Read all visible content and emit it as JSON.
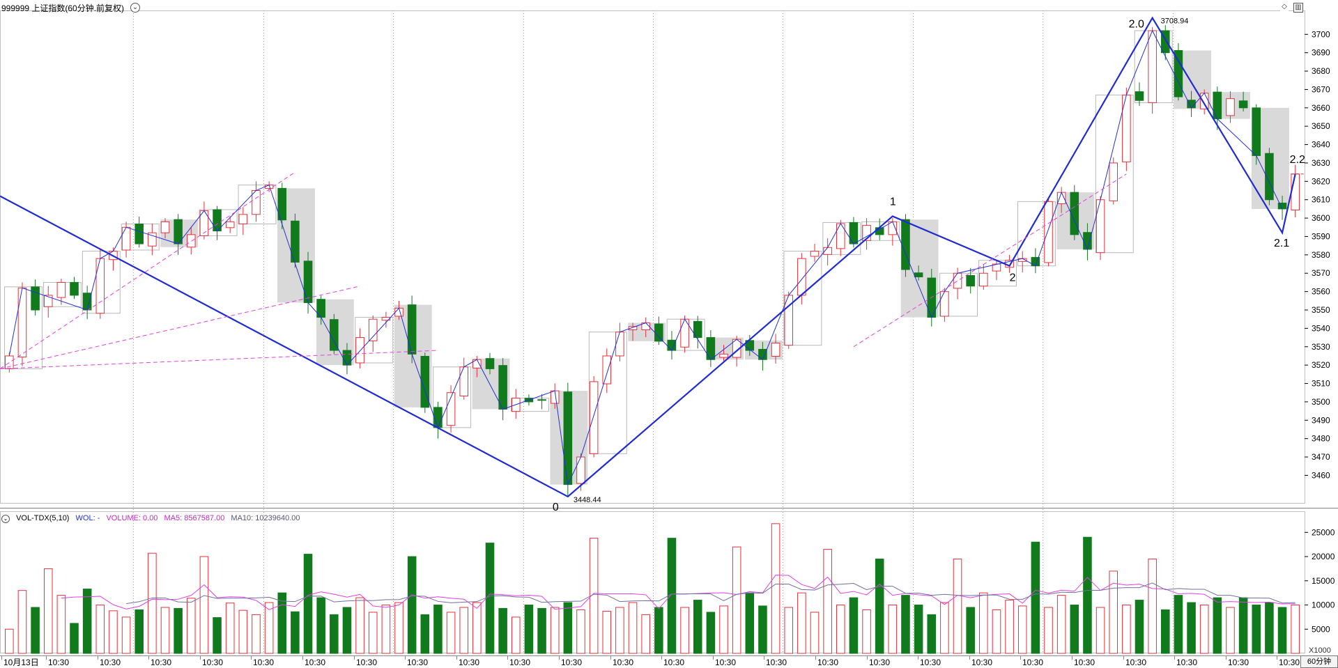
{
  "header": {
    "title": "999999 上证指数(60分钟.前复权)",
    "icons": [
      "chevron-down-icon",
      "diamond-icon",
      "panel-toggle-icon"
    ]
  },
  "colors": {
    "up": "#e8303a",
    "down": "#117a1d",
    "wave": "#1f2bd4",
    "wave_thin": "#2230e0",
    "channel": "#e040e0",
    "box": "#d9d9d9",
    "ma5": "#e040e0",
    "ma10": "#7070a0",
    "grid": "#a0a0a0"
  },
  "price_axis": {
    "ticks": [
      3460,
      3470,
      3480,
      3490,
      3500,
      3510,
      3520,
      3530,
      3540,
      3550,
      3560,
      3570,
      3580,
      3590,
      3600,
      3610,
      3620,
      3630,
      3640,
      3650,
      3660,
      3670,
      3680,
      3690,
      3700
    ],
    "range": [
      3445,
      3713
    ]
  },
  "volume_axis": {
    "ticks": [
      5000,
      10000,
      15000,
      20000,
      25000
    ],
    "unit_label": "X1000",
    "range": [
      0,
      28500
    ]
  },
  "time_axis": {
    "labels": [
      "10月13日",
      "10:30",
      "10:30",
      "10:30",
      "10:30",
      "10:30",
      "10:30",
      "10:30",
      "10:30",
      "10:30",
      "10:30",
      "10:30",
      "10:30",
      "10:30",
      "10:30",
      "10:30",
      "10:30",
      "10:30",
      "10:30",
      "10:30",
      "10:30",
      "10:30",
      "10:30",
      "10:30",
      "10:30",
      "10:30"
    ]
  },
  "volume_legend": {
    "name": "VOL-TDX(5,10)",
    "wol": "WOL: -",
    "volume": "VOLUME: 0.00",
    "ma5": "MA5: 8567587.00",
    "ma10": "MA10: 10239640.00"
  },
  "period_label": "60分钟",
  "chart_data": {
    "type": "candlestick",
    "series_name": "999999 上证指数",
    "interval": "60分钟",
    "candle_count": 100,
    "low_extreme": {
      "label": "3448.44",
      "value": 3448.44
    },
    "high_extreme": {
      "label": "3708.94",
      "value": 3708.94
    },
    "close_series": [
      3525,
      3562,
      3550,
      3558,
      3565,
      3558,
      3550,
      3578,
      3582,
      3595,
      3586,
      3592,
      3598,
      3586,
      3591,
      3604,
      3593,
      3598,
      3602,
      3615,
      3618,
      3599,
      3576,
      3554,
      3546,
      3528,
      3520,
      3535,
      3545,
      3546,
      3551,
      3526,
      3497,
      3486,
      3505,
      3519,
      3523,
      3518,
      3496,
      3502,
      3500,
      3501,
      3506,
      3455,
      3470,
      3511,
      3525,
      3538,
      3541,
      3543,
      3533,
      3528,
      3545,
      3535,
      3523,
      3526,
      3534,
      3528,
      3523,
      3532,
      3558,
      3578,
      3582,
      3584,
      3597,
      3586,
      3596,
      3591,
      3598,
      3572,
      3568,
      3546,
      3560,
      3570,
      3563,
      3570,
      3575,
      3577,
      3578,
      3574,
      3609,
      3614,
      3591,
      3583,
      3610,
      3630,
      3667,
      3664,
      3702,
      3690,
      3666,
      3660,
      3668,
      3654,
      3665,
      3660,
      3634,
      3610,
      3605,
      3624
    ],
    "waves": [
      {
        "label": "0",
        "value": 3448.44
      },
      {
        "label": "1",
        "value": 3601
      },
      {
        "label": "2",
        "value": 3574
      },
      {
        "label": "2.0",
        "value": 3708.94
      },
      {
        "label": "2.1",
        "value": 3592
      },
      {
        "label": "2.2",
        "value": 3624
      }
    ],
    "volume": {
      "values_k": [
        5000,
        13000,
        9500,
        17500,
        12000,
        6200,
        13300,
        10000,
        8800,
        7500,
        9000,
        20700,
        9500,
        9300,
        11400,
        20000,
        7400,
        10400,
        8900,
        8000,
        10500,
        12500,
        8600,
        20500,
        11500,
        8000,
        9500,
        11500,
        8500,
        10000,
        10500,
        20000,
        8000,
        10000,
        8500,
        9500,
        10500,
        22800,
        9300,
        7500,
        10000,
        9300,
        9500,
        10500,
        9000,
        23800,
        8700,
        9500,
        10500,
        8000,
        9500,
        23800,
        9500,
        11000,
        8500,
        9800,
        22000,
        12500,
        9800,
        26800,
        9500,
        12500,
        8500,
        21500,
        10000,
        11500,
        9000,
        19500,
        10000,
        12000,
        10000,
        8000,
        10500,
        19500,
        9500,
        12500,
        9000,
        11000,
        9800,
        23000,
        9500,
        12000,
        10000,
        24000,
        9500,
        17000,
        10000,
        11000,
        19500,
        9000,
        12000,
        10500,
        10000,
        11500,
        9500,
        11500,
        10000,
        10500,
        9500,
        10000
      ],
      "ma5_latest": "8567587.00",
      "ma10_latest": "10239640.00"
    }
  }
}
